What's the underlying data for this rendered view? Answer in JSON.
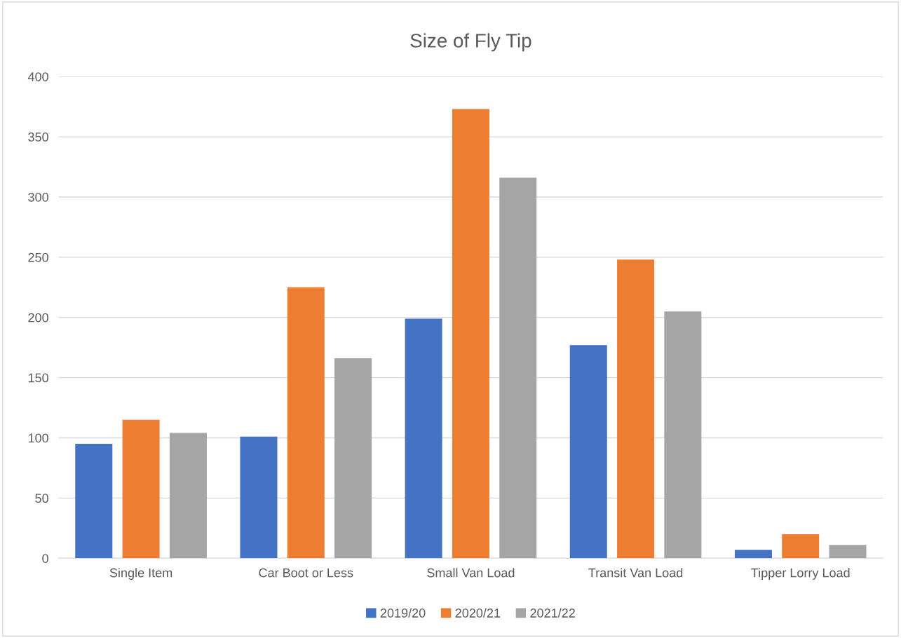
{
  "chart_data": {
    "type": "bar",
    "title": "Size of Fly Tip",
    "categories": [
      "Single Item",
      "Car Boot or Less",
      "Small Van Load",
      "Transit Van Load",
      "Tipper Lorry Load"
    ],
    "series": [
      {
        "name": "2019/20",
        "color": "#4472c4",
        "values": [
          95,
          101,
          199,
          177,
          7
        ]
      },
      {
        "name": "2020/21",
        "color": "#ed7d31",
        "values": [
          115,
          225,
          373,
          248,
          20
        ]
      },
      {
        "name": "2021/22",
        "color": "#a5a5a5",
        "values": [
          104,
          166,
          316,
          205,
          11
        ]
      }
    ],
    "ylim": [
      0,
      400
    ],
    "yticks": [
      0,
      50,
      100,
      150,
      200,
      250,
      300,
      350,
      400
    ],
    "grid": "y",
    "legend": "bottom"
  }
}
